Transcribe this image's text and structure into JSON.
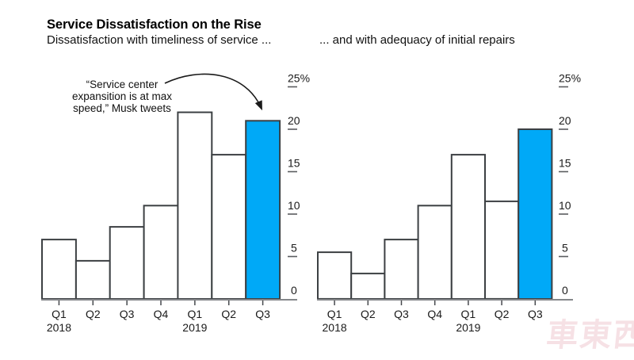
{
  "header": {
    "title": "Service Dissatisfaction on the Rise",
    "subtitle_left": "Dissatisfaction with timeliness of service ...",
    "subtitle_right": "... and with adequacy of initial repairs"
  },
  "annotation": {
    "text": "“Service center\nexpansition is at max\nspeed,” Musk tweets"
  },
  "watermark": {
    "text": "車東西"
  },
  "colors": {
    "highlight_blue": "#00a9f7",
    "bar_fill": "#ffffff",
    "bar_stroke": "#3c4043",
    "axis_line": "#85878a",
    "tick_dark": "#46494d",
    "ytick_dash": "#5a5c5f",
    "text": "#1a1a1a",
    "watermark_pink": "#eec4cc"
  },
  "chart_data": [
    {
      "type": "bar",
      "title": "Dissatisfaction with timeliness of service ...",
      "categories": [
        "Q1",
        "Q2",
        "Q3",
        "Q4",
        "Q1",
        "Q2",
        "Q3"
      ],
      "year_labels": [
        {
          "index": 0,
          "label": "2018"
        },
        {
          "index": 4,
          "label": "2019"
        }
      ],
      "values": [
        7,
        4.5,
        8.5,
        11,
        22,
        17,
        21
      ],
      "highlight_index": 6,
      "unit": "%",
      "ylim": [
        0,
        25
      ],
      "yticks": [
        0,
        5,
        10,
        15,
        20,
        25
      ],
      "ytick_labels": [
        "0",
        "5",
        "10",
        "15",
        "20",
        "25%"
      ],
      "grid": false,
      "legend": "none"
    },
    {
      "type": "bar",
      "title": "... and with adequacy of initial repairs",
      "categories": [
        "Q1",
        "Q2",
        "Q3",
        "Q4",
        "Q1",
        "Q2",
        "Q3"
      ],
      "year_labels": [
        {
          "index": 0,
          "label": "2018"
        },
        {
          "index": 4,
          "label": "2019"
        }
      ],
      "values": [
        5.5,
        3,
        7,
        11,
        17,
        11.5,
        20
      ],
      "highlight_index": 6,
      "unit": "%",
      "ylim": [
        0,
        25
      ],
      "yticks": [
        0,
        5,
        10,
        15,
        20,
        25
      ],
      "ytick_labels": [
        "0",
        "5",
        "10",
        "15",
        "20",
        "25%"
      ],
      "grid": false,
      "legend": "none"
    }
  ]
}
